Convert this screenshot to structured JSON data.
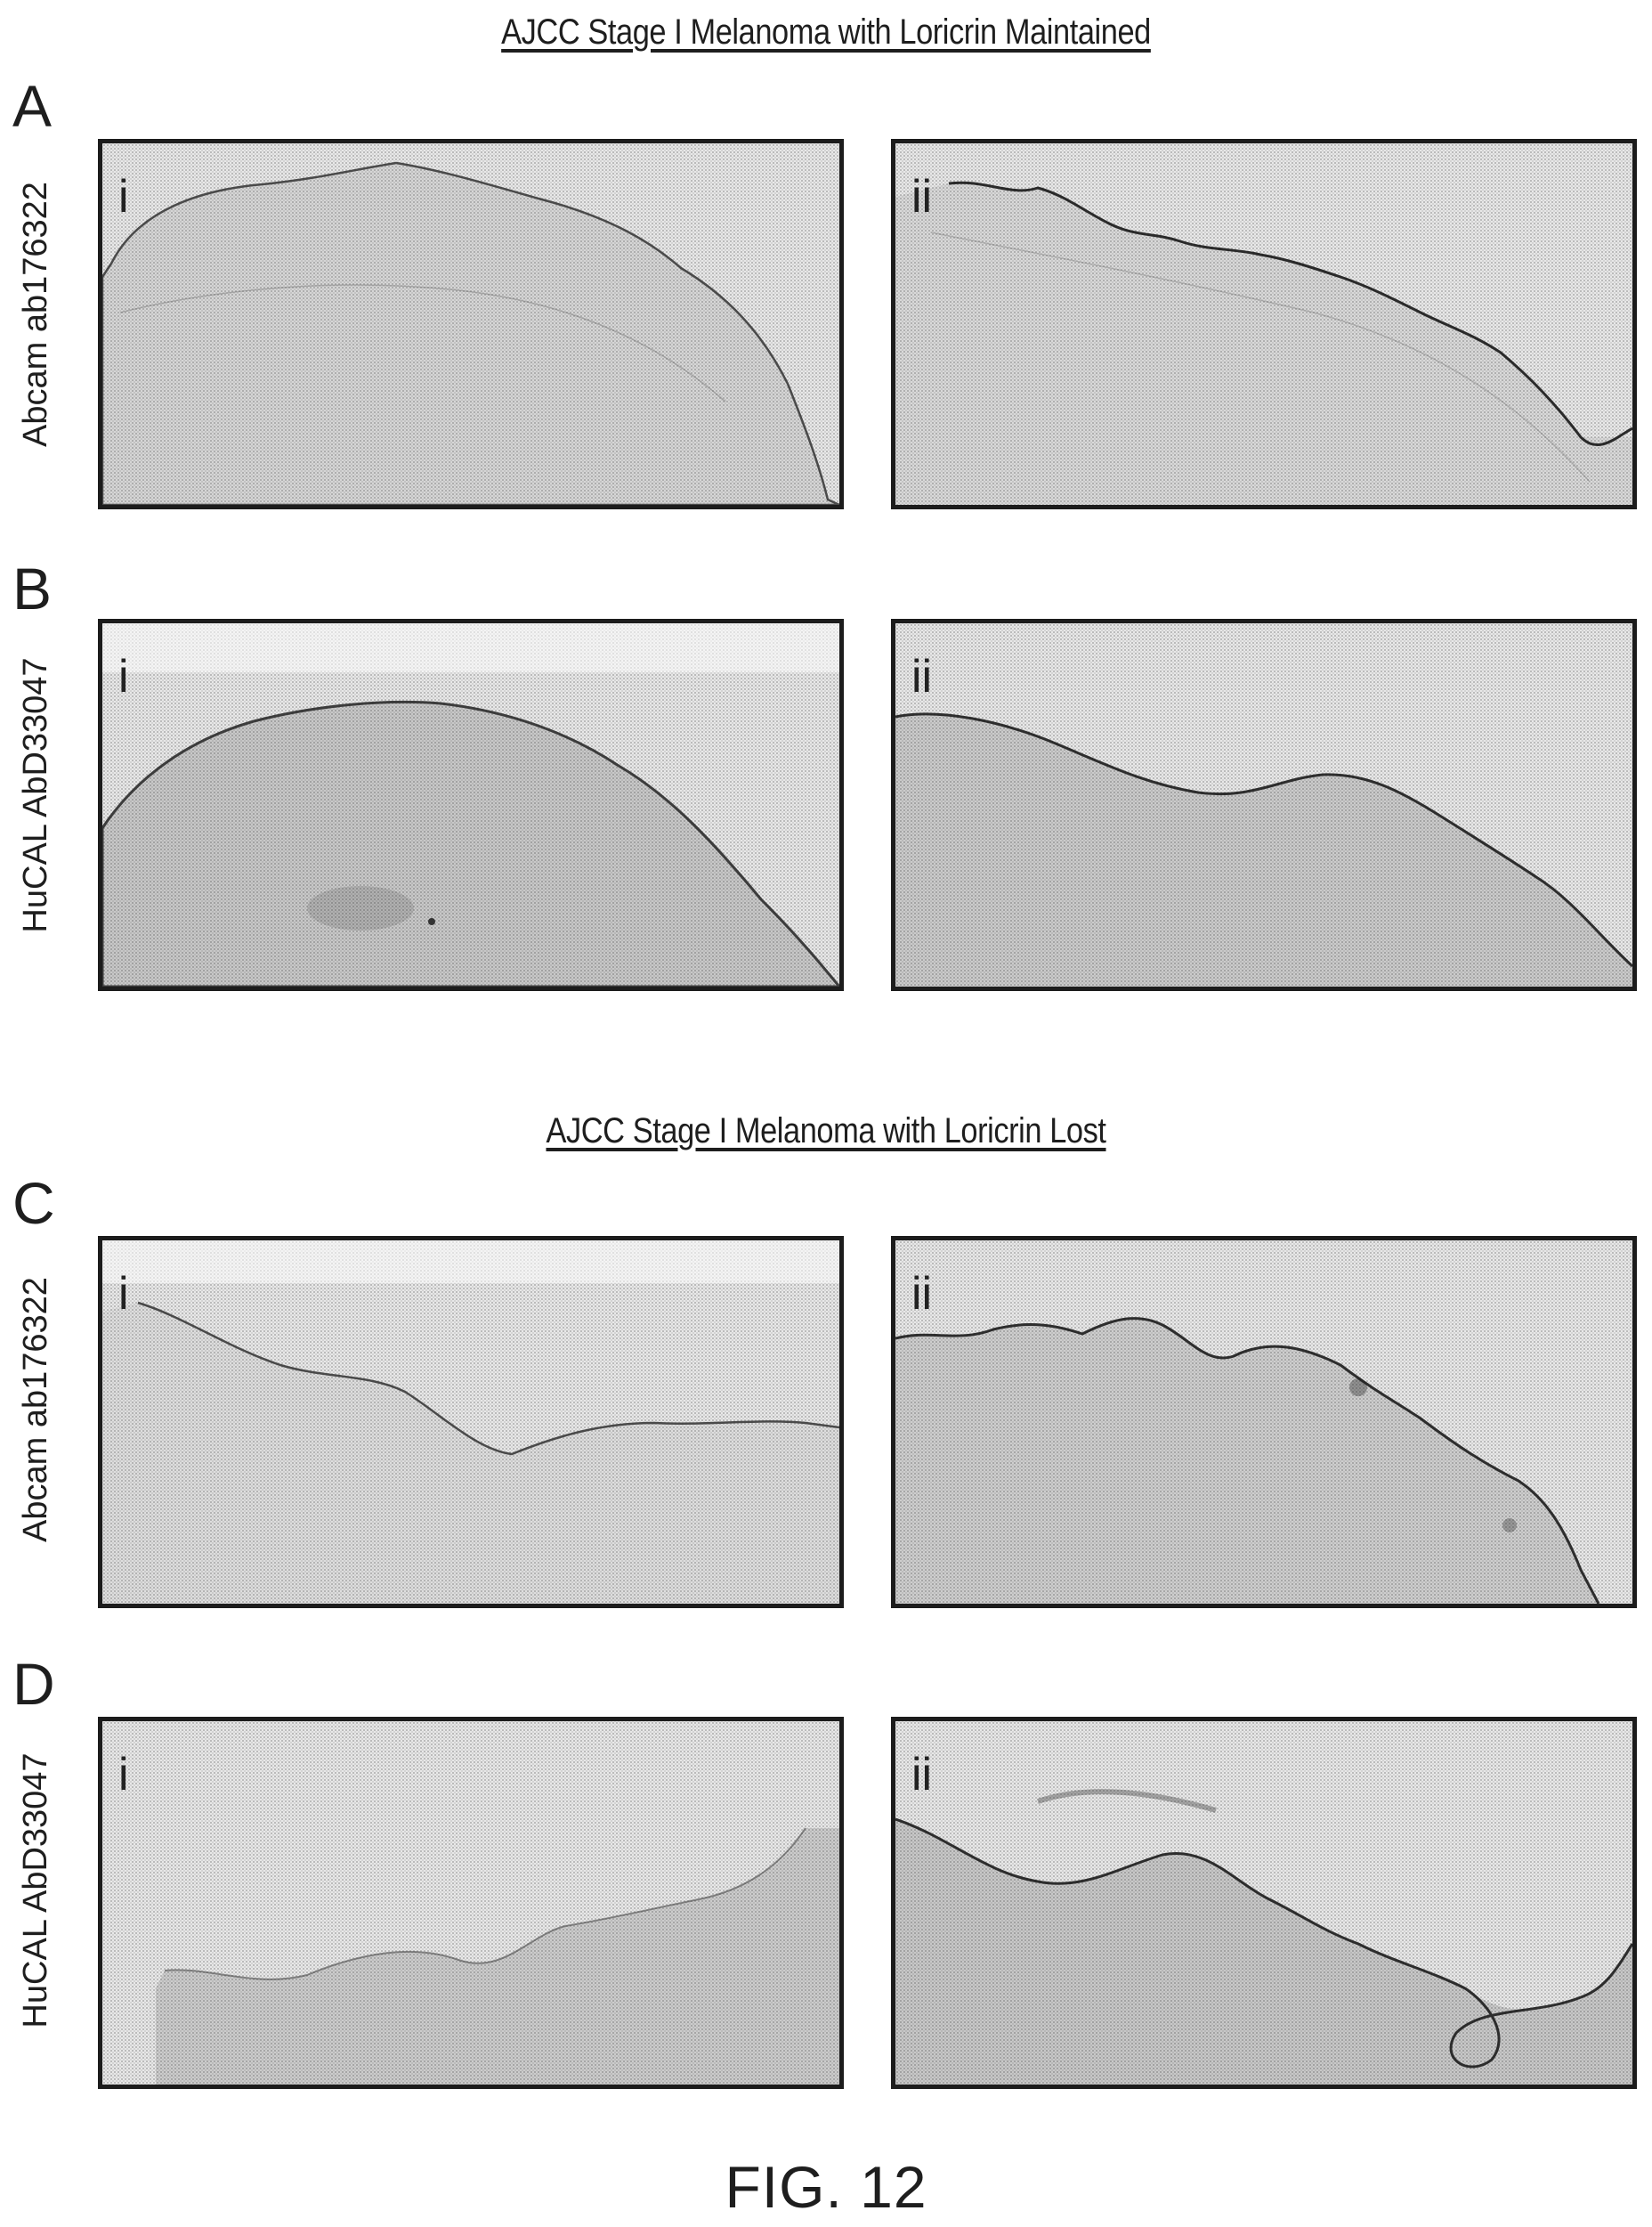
{
  "sections": [
    {
      "title": "AJCC Stage I Melanoma with Loricrin Maintained"
    },
    {
      "title": "AJCC Stage I Melanoma with Loricrin Lost"
    }
  ],
  "rows": [
    {
      "letter": "A",
      "antibody": "Abcam ab176322"
    },
    {
      "letter": "B",
      "antibody": "HuCAL AbD33047"
    },
    {
      "letter": "C",
      "antibody": "Abcam ab176322"
    },
    {
      "letter": "D",
      "antibody": "HuCAL AbD33047"
    }
  ],
  "panel_labels": [
    "i",
    "ii"
  ],
  "figure_label": "FIG. 12"
}
